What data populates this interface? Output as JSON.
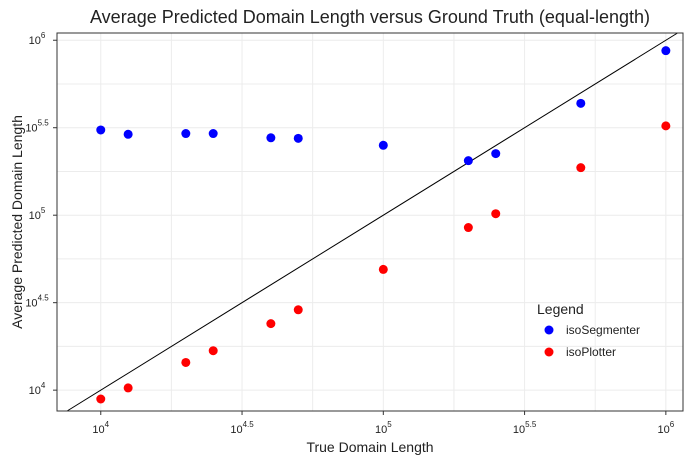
{
  "chart_data": {
    "type": "scatter",
    "title": "Average Predicted Domain Length versus Ground Truth (equal-length)",
    "xlabel": "True Domain Length",
    "ylabel": "Average Predicted Domain Length",
    "x_scale": "log10",
    "y_scale": "log10",
    "xlim": [
      7000,
      1150000
    ],
    "ylim": [
      7600,
      1100000
    ],
    "x_ticks": [
      {
        "base": "10",
        "exp": "4",
        "value": 10000
      },
      {
        "base": "10",
        "exp": "4.5",
        "value": 31623
      },
      {
        "base": "10",
        "exp": "5",
        "value": 100000
      },
      {
        "base": "10",
        "exp": "5.5",
        "value": 316228
      },
      {
        "base": "10",
        "exp": "6",
        "value": 1000000
      }
    ],
    "y_ticks": [
      {
        "base": "10",
        "exp": "4",
        "value": 10000
      },
      {
        "base": "10",
        "exp": "4.5",
        "value": 31623
      },
      {
        "base": "10",
        "exp": "5",
        "value": 100000
      },
      {
        "base": "10",
        "exp": "5.5",
        "value": 316228
      },
      {
        "base": "10",
        "exp": "6",
        "value": 1000000
      }
    ],
    "grid": true,
    "reference_line": "y = x",
    "legend": {
      "title": "Legend",
      "placement": "bottom-right",
      "entries": [
        "isoSegmenter",
        "isoPlotter"
      ]
    },
    "series": [
      {
        "name": "isoSegmenter",
        "color": "#0000ff",
        "points": [
          {
            "x": 10000,
            "y": 307000
          },
          {
            "x": 12500,
            "y": 290000
          },
          {
            "x": 20000,
            "y": 293000
          },
          {
            "x": 25000,
            "y": 293000
          },
          {
            "x": 40000,
            "y": 277000
          },
          {
            "x": 50000,
            "y": 275000
          },
          {
            "x": 100000,
            "y": 251000
          },
          {
            "x": 200000,
            "y": 205000
          },
          {
            "x": 250000,
            "y": 225000
          },
          {
            "x": 500000,
            "y": 436000
          },
          {
            "x": 1000000,
            "y": 872000
          }
        ]
      },
      {
        "name": "isoPlotter",
        "color": "#ff0000",
        "points": [
          {
            "x": 10000,
            "y": 8900
          },
          {
            "x": 12500,
            "y": 10300
          },
          {
            "x": 20000,
            "y": 14400
          },
          {
            "x": 25000,
            "y": 16800
          },
          {
            "x": 40000,
            "y": 24000
          },
          {
            "x": 50000,
            "y": 28800
          },
          {
            "x": 100000,
            "y": 49000
          },
          {
            "x": 200000,
            "y": 85000
          },
          {
            "x": 250000,
            "y": 102000
          },
          {
            "x": 500000,
            "y": 187000
          },
          {
            "x": 1000000,
            "y": 324000
          }
        ]
      }
    ]
  }
}
